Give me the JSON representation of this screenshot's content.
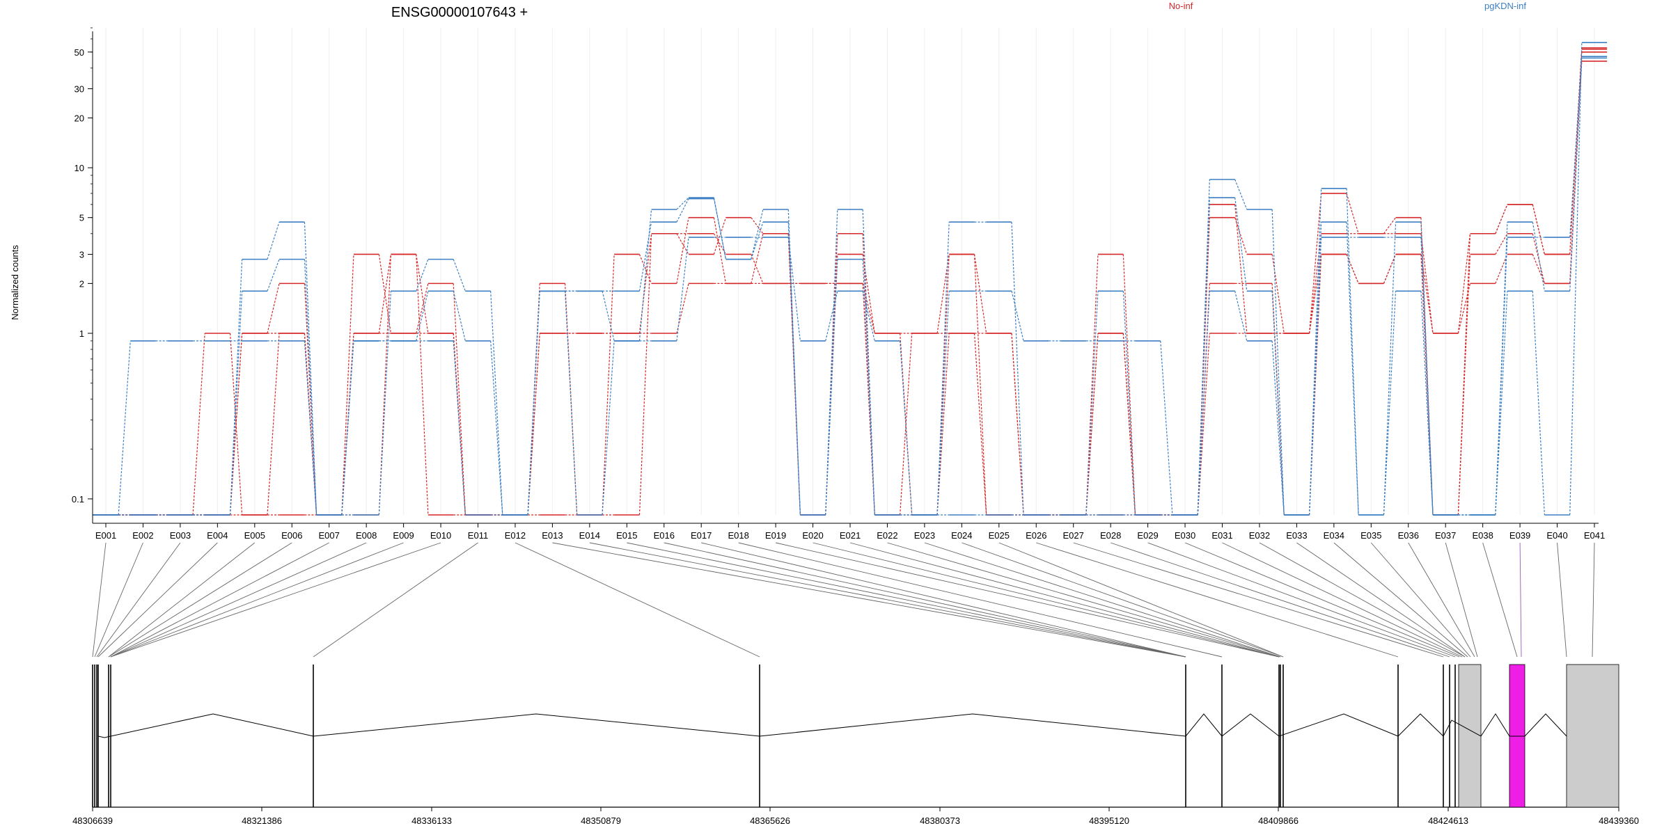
{
  "title": "ENSG00000107643 +",
  "ylabel": "Normalized counts",
  "legend": [
    {
      "label": "No-inf",
      "color": "#d62728"
    },
    {
      "label": "pgKDN-inf",
      "color": "#3b7fc4"
    }
  ],
  "colors": {
    "no_inf": "#d62728",
    "pgkdn_inf": "#3b7fc4",
    "highlight": "#ee1ee6",
    "exon_box": "#cccccc"
  },
  "chart_data": {
    "type": "line",
    "y_scale": "log",
    "y_ticks": [
      0.1,
      1,
      2,
      3,
      5,
      10,
      20,
      30,
      50
    ],
    "y_tick_labels": [
      "0.1",
      "1",
      "2",
      "3",
      "5",
      "10",
      "20",
      "30",
      "50"
    ],
    "ylim": [
      0.08,
      70
    ],
    "grid_vertical": true,
    "categories": [
      "E001",
      "E002",
      "E003",
      "E004",
      "E005",
      "E006",
      "E007",
      "E008",
      "E009",
      "E010",
      "E011",
      "E012",
      "E013",
      "E014",
      "E015",
      "E016",
      "E017",
      "E018",
      "E019",
      "E020",
      "E021",
      "E022",
      "E023",
      "E024",
      "E025",
      "E026",
      "E027",
      "E028",
      "E029",
      "E030",
      "E031",
      "E032",
      "E033",
      "E034",
      "E035",
      "E036",
      "E037",
      "E038",
      "E039",
      "E040",
      "E041"
    ],
    "series": [
      {
        "group": "No-inf",
        "color": "#d62728",
        "values": [
          0.08,
          0.08,
          0.08,
          0.08,
          1,
          1,
          0.08,
          1,
          1,
          1,
          0.08,
          0.08,
          1,
          1,
          1,
          1,
          2,
          2,
          2,
          2,
          2,
          1,
          1,
          1,
          1,
          0.08,
          0.08,
          1,
          0.08,
          0.08,
          1,
          1,
          1,
          3,
          2,
          3,
          1,
          2,
          3,
          2,
          44
        ]
      },
      {
        "group": "No-inf",
        "color": "#d62728",
        "values": [
          0.08,
          0.08,
          0.08,
          1,
          0.08,
          0.08,
          0.08,
          3,
          1,
          2,
          0.08,
          0.08,
          2,
          0.08,
          3,
          2,
          5,
          2,
          4,
          0.08,
          3,
          1,
          0.08,
          3,
          0.08,
          0.08,
          0.08,
          3,
          0.08,
          0.08,
          2,
          2,
          0.08,
          3,
          2,
          3,
          0.08,
          3,
          4,
          2,
          50
        ]
      },
      {
        "group": "No-inf",
        "color": "#d62728",
        "values": [
          0.08,
          0.08,
          0.08,
          0.08,
          1,
          2,
          0.08,
          1,
          3,
          1,
          0.08,
          0.08,
          1,
          1,
          1,
          4,
          3,
          5,
          4,
          0.08,
          4,
          0.08,
          1,
          3,
          1,
          0.08,
          0.08,
          1,
          0.08,
          0.08,
          5,
          3,
          1,
          4,
          4,
          4,
          1,
          4,
          6,
          3,
          52
        ]
      },
      {
        "group": "No-inf",
        "color": "#d62728",
        "values": [
          0.08,
          0.08,
          0.08,
          0.08,
          0.08,
          1,
          0.08,
          0.08,
          3,
          0.08,
          0.08,
          0.08,
          0.08,
          0.08,
          0.08,
          4,
          4,
          3,
          2,
          2,
          2,
          0.08,
          0.08,
          1,
          0.08,
          0.08,
          0.08,
          0.08,
          0.08,
          0.08,
          6,
          1,
          1,
          7,
          4,
          5,
          0.08,
          4,
          6,
          3,
          53
        ]
      },
      {
        "group": "pgKDN-inf",
        "color": "#3b7fc4",
        "values": [
          0.08,
          0.9,
          0.9,
          0.9,
          0.9,
          0.9,
          0.08,
          0.9,
          0.9,
          1.8,
          0.9,
          0.08,
          1.8,
          1.8,
          0.9,
          0.9,
          3.8,
          3.8,
          3.8,
          0.9,
          1.8,
          0.9,
          0.08,
          1.8,
          1.8,
          0.9,
          0.9,
          0.9,
          0.9,
          0.08,
          1.8,
          0.9,
          0.08,
          3.8,
          3.8,
          3.8,
          0.08,
          0.08,
          3.8,
          3.8,
          47
        ]
      },
      {
        "group": "pgKDN-inf",
        "color": "#3b7fc4",
        "values": [
          0.08,
          0.08,
          0.08,
          0.08,
          1.8,
          2.8,
          0.08,
          0.08,
          1.8,
          2.8,
          1.8,
          0.08,
          1.8,
          1.8,
          1.8,
          4.7,
          6.5,
          2.8,
          4.7,
          0.08,
          2.8,
          0.08,
          0.08,
          4.7,
          4.7,
          0.08,
          0.08,
          1.8,
          0.08,
          0.08,
          8.5,
          5.6,
          0.08,
          7.5,
          0.08,
          4.7,
          0.08,
          0.08,
          4.7,
          1.8,
          46
        ]
      },
      {
        "group": "pgKDN-inf",
        "color": "#3b7fc4",
        "values": [
          0.08,
          0.08,
          0.08,
          0.08,
          2.8,
          4.7,
          0.08,
          0.9,
          0.9,
          0.9,
          0.08,
          0.08,
          1.8,
          0.08,
          0.9,
          5.6,
          6.6,
          2.8,
          5.6,
          0.08,
          5.6,
          0.08,
          0.08,
          0.08,
          0.08,
          0.08,
          0.08,
          0.08,
          0.08,
          0.08,
          6.6,
          1.8,
          0.08,
          4.7,
          0.08,
          1.8,
          0.08,
          0.08,
          1.8,
          0.08,
          57
        ]
      }
    ]
  },
  "gene_model": {
    "positions": [
      "48306639",
      "48321386",
      "48336133",
      "48350879",
      "48365626",
      "48380373",
      "48395120",
      "48409866",
      "48424613",
      "48439360"
    ],
    "highlighted_exon": "E039"
  }
}
